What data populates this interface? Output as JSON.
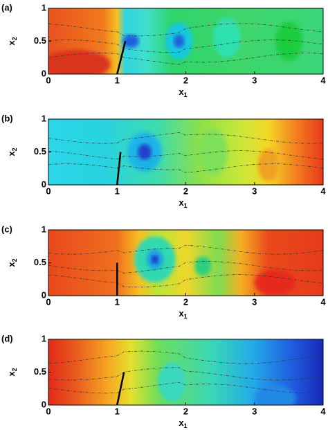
{
  "chart_data": [
    {
      "type": "contour",
      "panel_label": "(a)",
      "x_label": "x",
      "x_label_sub": "1",
      "y_label": "x",
      "y_label_sub": "2",
      "xlim": [
        0,
        4
      ],
      "ylim": [
        0,
        1
      ],
      "xticks": [
        0,
        1,
        2,
        3,
        4
      ],
      "yticks": [
        0,
        0.5,
        1
      ]
    },
    {
      "type": "contour",
      "panel_label": "(b)",
      "x_label": "x",
      "x_label_sub": "1",
      "y_label": "x",
      "y_label_sub": "2",
      "xlim": [
        0,
        4
      ],
      "ylim": [
        0,
        1
      ],
      "xticks": [
        0,
        1,
        2,
        3,
        4
      ],
      "yticks": [
        0,
        0.5,
        1
      ]
    },
    {
      "type": "contour",
      "panel_label": "(c)",
      "x_label": "x",
      "x_label_sub": "1",
      "y_label": "x",
      "y_label_sub": "2",
      "xlim": [
        0,
        4
      ],
      "ylim": [
        0,
        1
      ],
      "xticks": [
        0,
        1,
        2,
        3,
        4
      ],
      "yticks": [
        0,
        0.5,
        1
      ]
    },
    {
      "type": "contour",
      "panel_label": "(d)",
      "x_label": "x",
      "x_label_sub": "1",
      "y_label": "x",
      "y_label_sub": "2",
      "xlim": [
        0,
        4
      ],
      "ylim": [
        0,
        1
      ],
      "xticks": [
        0,
        1,
        2,
        3,
        4
      ],
      "yticks": [
        0,
        0.5,
        1
      ]
    }
  ]
}
